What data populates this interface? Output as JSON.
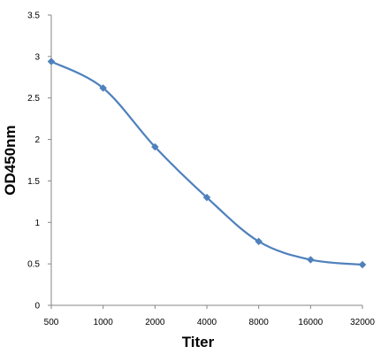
{
  "chart_data": {
    "type": "line",
    "title": "",
    "xlabel": "Titer",
    "ylabel": "OD450nm",
    "categories": [
      "500",
      "1000",
      "2000",
      "4000",
      "8000",
      "16000",
      "32000"
    ],
    "y_ticks": [
      "0",
      "0.5",
      "1",
      "1.5",
      "2",
      "2.5",
      "3",
      "3.5"
    ],
    "ylim": [
      0,
      3.5
    ],
    "grid": false,
    "legend": "none",
    "series": [
      {
        "values": [
          2.94,
          2.62,
          1.91,
          1.3,
          0.77,
          0.55,
          0.49
        ],
        "color": "#4F81BD",
        "marker": "diamond",
        "smooth": true
      }
    ]
  }
}
